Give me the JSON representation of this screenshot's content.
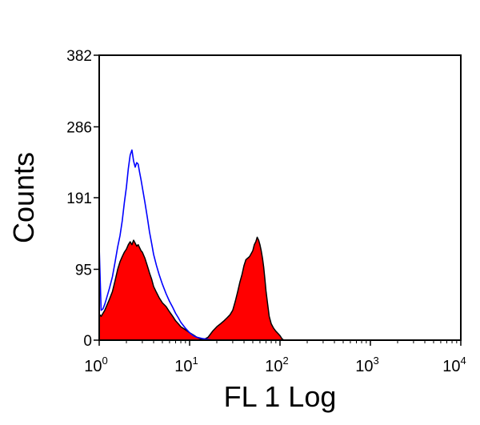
{
  "chart_data": {
    "type": "area",
    "xlabel": "FL 1 Log",
    "ylabel": "Counts",
    "x_scale": "log",
    "xlim": [
      1,
      10000
    ],
    "ylim": [
      0,
      382
    ],
    "grid": false,
    "y_ticks": [
      {
        "value": 0,
        "label": "0"
      },
      {
        "value": 95,
        "label": "95"
      },
      {
        "value": 191,
        "label": "191"
      },
      {
        "value": 286,
        "label": "286"
      },
      {
        "value": 382,
        "label": "382"
      }
    ],
    "x_ticks": [
      {
        "value": 1,
        "base": "10",
        "exp": "0"
      },
      {
        "value": 10,
        "base": "10",
        "exp": "1"
      },
      {
        "value": 100,
        "base": "10",
        "exp": "2"
      },
      {
        "value": 1000,
        "base": "10",
        "exp": "3"
      },
      {
        "value": 10000,
        "base": "10",
        "exp": "4"
      }
    ],
    "colors": {
      "filled": "#ff0000",
      "filled_outline": "#000000",
      "overlay": "#0000ff"
    },
    "series": [
      {
        "style": "filled",
        "x": [
          1.0,
          1.05,
          1.1,
          1.15,
          1.2,
          1.3,
          1.4,
          1.5,
          1.6,
          1.7,
          1.8,
          1.9,
          2.0,
          2.1,
          2.2,
          2.3,
          2.4,
          2.5,
          2.6,
          2.7,
          2.8,
          2.9,
          3.0,
          3.2,
          3.4,
          3.6,
          3.8,
          4.0,
          4.3,
          4.6,
          5.0,
          5.5,
          6.0,
          6.5,
          7.0,
          7.5,
          8.0,
          9.0,
          10.0,
          11.0,
          12.0,
          13.0,
          14.0,
          15.0,
          16.0,
          17.0,
          18.0,
          20.0,
          22.0,
          24.0,
          26.0,
          28.0,
          30.0,
          32.0,
          34.0,
          36.0,
          38.0,
          40.0,
          42.0,
          44.0,
          46.0,
          48.0,
          50.0,
          52.0,
          54.0,
          56.0,
          58.0,
          60.0,
          62.0,
          64.0,
          66.0,
          68.0,
          70.0,
          73.0,
          76.0,
          80.0,
          85.0,
          90.0,
          95.0,
          100.0,
          105.0,
          110.0
        ],
        "y": [
          35,
          32,
          36,
          40,
          45,
          55,
          65,
          80,
          95,
          105,
          112,
          118,
          122,
          128,
          132,
          128,
          134,
          130,
          126,
          128,
          124,
          120,
          118,
          110,
          100,
          90,
          82,
          72,
          64,
          57,
          50,
          45,
          38,
          32,
          26,
          22,
          18,
          14,
          10,
          7,
          4,
          2,
          1,
          2,
          4,
          8,
          12,
          18,
          22,
          26,
          30,
          34,
          40,
          52,
          65,
          78,
          88,
          100,
          108,
          110,
          112,
          116,
          120,
          128,
          132,
          138,
          134,
          128,
          120,
          110,
          98,
          82,
          66,
          48,
          32,
          22,
          16,
          12,
          9,
          6,
          2,
          0
        ]
      },
      {
        "style": "overlay",
        "x": [
          1.0,
          1.05,
          1.1,
          1.15,
          1.2,
          1.3,
          1.4,
          1.5,
          1.6,
          1.7,
          1.8,
          1.9,
          2.0,
          2.1,
          2.2,
          2.3,
          2.4,
          2.5,
          2.6,
          2.7,
          2.8,
          2.9,
          3.0,
          3.2,
          3.4,
          3.6,
          3.8,
          4.0,
          4.3,
          4.6,
          5.0,
          5.5,
          6.0,
          6.5,
          7.0,
          7.5,
          8.0,
          9.0,
          10.0,
          11.0,
          12.0,
          14.0,
          16.0,
          18.0,
          20.0
        ],
        "y": [
          126,
          40,
          42,
          48,
          55,
          70,
          85,
          105,
          125,
          140,
          160,
          185,
          205,
          230,
          248,
          255,
          240,
          232,
          238,
          236,
          225,
          215,
          205,
          185,
          165,
          145,
          130,
          115,
          100,
          88,
          75,
          62,
          52,
          44,
          36,
          30,
          24,
          16,
          10,
          6,
          4,
          2,
          1,
          0,
          0
        ]
      }
    ]
  }
}
